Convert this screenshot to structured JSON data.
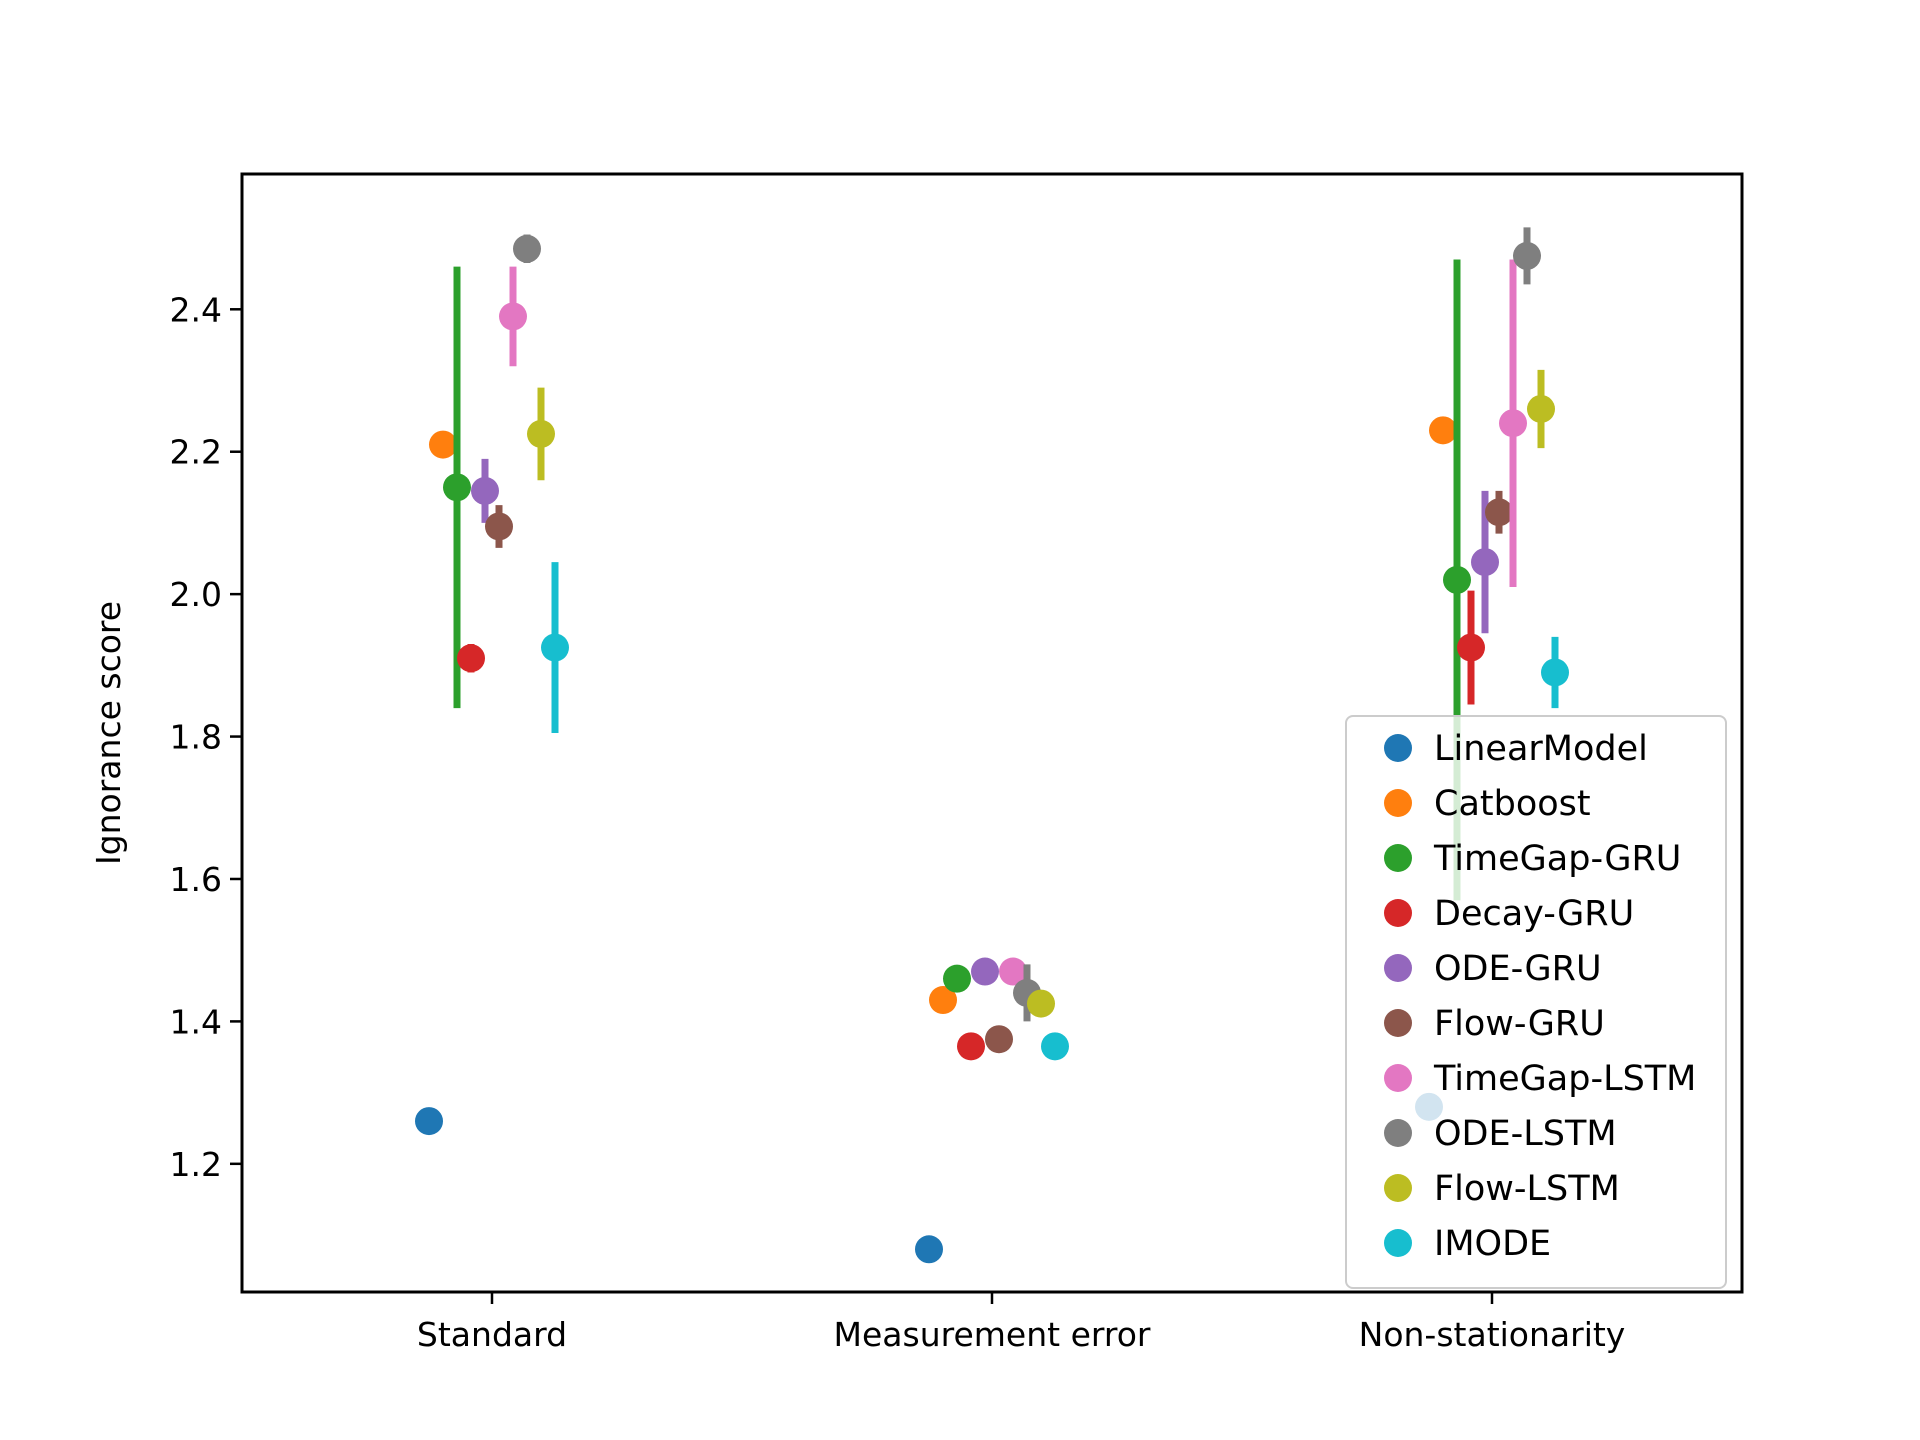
{
  "chart_data": {
    "type": "scatter",
    "title": "",
    "xlabel": "",
    "ylabel": "Ignorance score",
    "categories": [
      "Standard",
      "Measurement error",
      "Non-stationarity"
    ],
    "ylim": [
      1.02,
      2.59
    ],
    "yticks": [
      "1.2",
      "1.4",
      "1.6",
      "1.8",
      "2.0",
      "2.2",
      "2.4"
    ],
    "grid": false,
    "legend_position": "lower-right",
    "series": [
      {
        "name": "LinearModel",
        "color": "#1f77b4",
        "values": [
          1.26,
          1.08,
          1.28
        ],
        "errors": [
          0,
          0,
          0
        ]
      },
      {
        "name": "Catboost",
        "color": "#ff7f0e",
        "values": [
          2.21,
          1.43,
          2.23
        ],
        "errors": [
          0,
          0,
          0
        ]
      },
      {
        "name": "TimeGap-GRU",
        "color": "#2ca02c",
        "values": [
          2.15,
          1.46,
          2.02
        ],
        "errors": [
          0.31,
          0,
          0.45
        ]
      },
      {
        "name": "Decay-GRU",
        "color": "#d62728",
        "values": [
          1.91,
          1.365,
          1.925
        ],
        "errors": [
          0.02,
          0,
          0.08
        ]
      },
      {
        "name": "ODE-GRU",
        "color": "#9467bd",
        "values": [
          2.145,
          1.47,
          2.045
        ],
        "errors": [
          0.045,
          0,
          0.1
        ]
      },
      {
        "name": "Flow-GRU",
        "color": "#8c564b",
        "values": [
          2.095,
          1.375,
          2.115
        ],
        "errors": [
          0.03,
          0,
          0.03
        ]
      },
      {
        "name": "TimeGap-LSTM",
        "color": "#e377c2",
        "values": [
          2.39,
          1.47,
          2.24
        ],
        "errors": [
          0.07,
          0,
          0.23
        ]
      },
      {
        "name": "ODE-LSTM",
        "color": "#7f7f7f",
        "values": [
          2.485,
          1.44,
          2.475
        ],
        "errors": [
          0.02,
          0.04,
          0.04
        ]
      },
      {
        "name": "Flow-LSTM",
        "color": "#bcbd22",
        "values": [
          2.225,
          1.425,
          2.26
        ],
        "errors": [
          0.065,
          0,
          0.055
        ]
      },
      {
        "name": "IMODE",
        "color": "#17becf",
        "values": [
          1.925,
          1.365,
          1.89
        ],
        "errors": [
          0.12,
          0,
          0.05
        ]
      }
    ]
  }
}
